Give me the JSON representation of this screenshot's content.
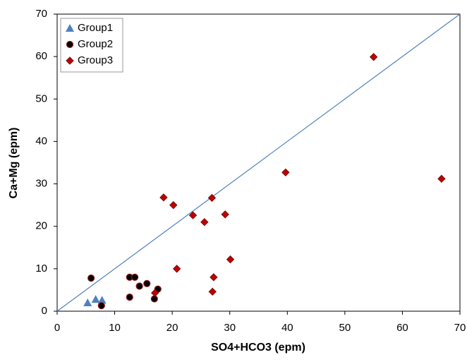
{
  "chart_data": {
    "type": "scatter",
    "x_label": "SO4+HCO3 (epm)",
    "y_label": "Ca+Mg (epm)",
    "xlim": [
      0,
      70
    ],
    "ylim": [
      0,
      70
    ],
    "xticks": [
      0,
      10,
      20,
      30,
      40,
      50,
      60,
      70
    ],
    "yticks": [
      0,
      10,
      20,
      30,
      40,
      50,
      60,
      70
    ],
    "legend": "upper left",
    "series": [
      {
        "name": "Group1",
        "color": "#4f81bd",
        "marker": "triangle",
        "x": [
          5.3,
          6.7,
          7.8
        ],
        "values": [
          2.0,
          2.8,
          2.6
        ]
      },
      {
        "name": "Group2",
        "color": "#000000",
        "marker": "circle",
        "x": [
          5.9,
          7.7,
          12.6,
          13.5,
          12.6,
          14.3,
          15.6,
          16.9,
          17.5
        ],
        "values": [
          7.8,
          1.3,
          8.0,
          8.0,
          3.3,
          5.9,
          6.5,
          2.9,
          5.2
        ]
      },
      {
        "name": "Group3",
        "color": "#c00000",
        "marker": "diamond",
        "x": [
          17.0,
          18.5,
          20.2,
          20.8,
          23.6,
          25.6,
          26.9,
          27.0,
          27.2,
          29.2,
          30.1,
          39.7,
          55.0,
          66.8
        ],
        "values": [
          4.3,
          26.8,
          25.0,
          10.0,
          22.6,
          21.0,
          26.7,
          4.6,
          8.0,
          22.8,
          12.2,
          32.7,
          59.9,
          31.2
        ]
      }
    ]
  }
}
